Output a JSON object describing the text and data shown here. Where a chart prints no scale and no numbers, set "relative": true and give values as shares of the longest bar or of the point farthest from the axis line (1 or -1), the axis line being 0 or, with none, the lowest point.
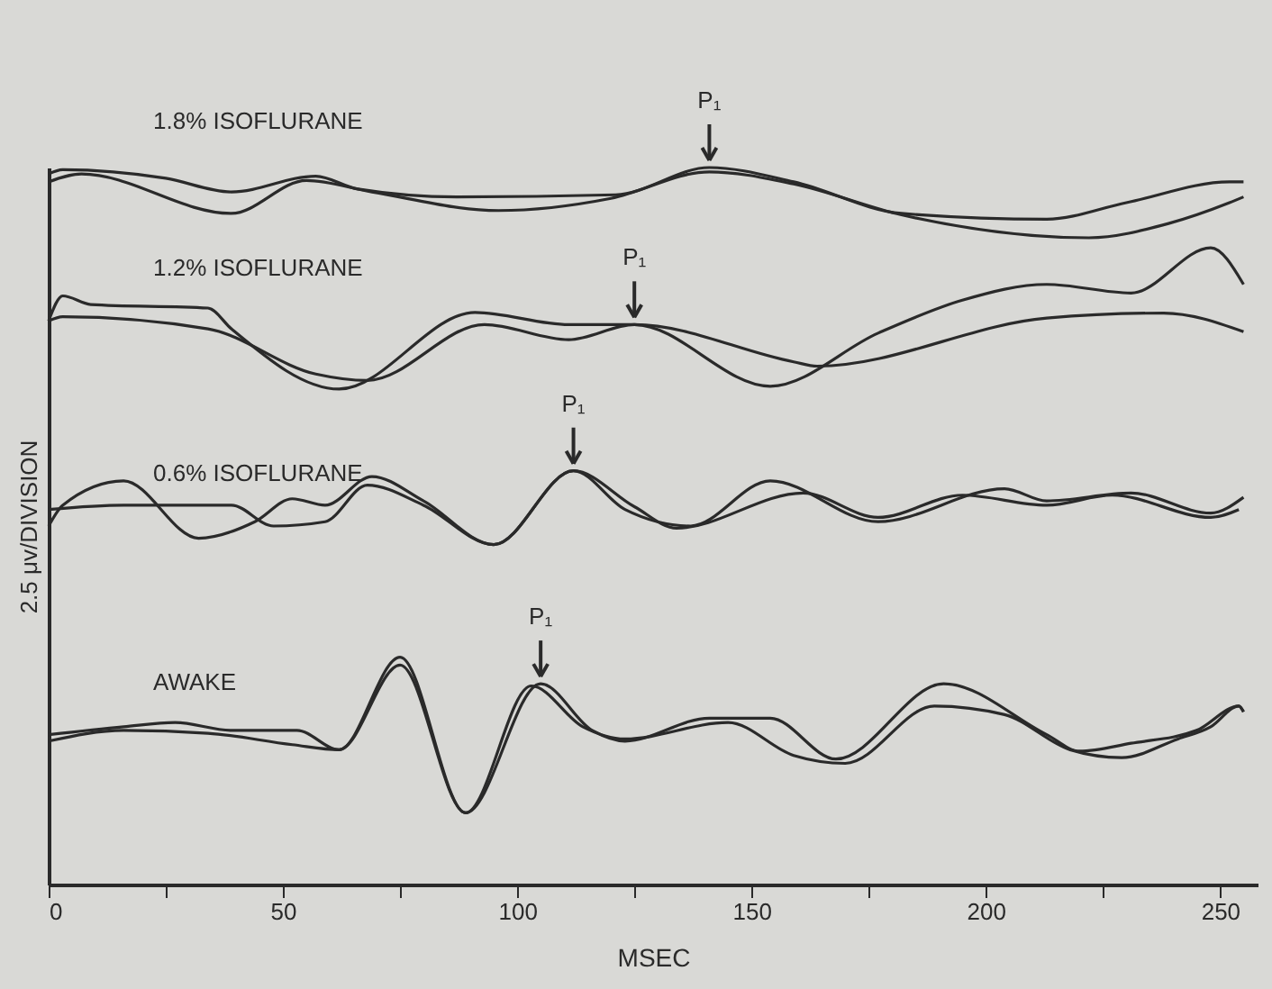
{
  "chart_data": {
    "type": "line",
    "relative": true,
    "xlabel": "MSEC",
    "ylabel": "2.5 μv/DIVISION",
    "xlim": [
      0,
      258
    ],
    "xticks": [
      0,
      {
        "value": 25,
        "label": null
      },
      50,
      {
        "value": 75,
        "label": null
      },
      100,
      {
        "value": 125,
        "label": null
      },
      150,
      {
        "value": 175,
        "label": null
      },
      200,
      {
        "value": 225,
        "label": null
      },
      250
    ],
    "grid": false,
    "legend": false,
    "marker": "none",
    "line_style": "solid",
    "series": [
      {
        "name": "1.8% ISOFLURANE",
        "color": "#2a2a2a",
        "x": [
          0,
          3,
          25,
          39,
          57,
          66,
          87,
          121,
          141,
          159,
          182,
          213,
          230,
          252,
          255
        ],
        "values": [
          0.991,
          0.997,
          0.985,
          0.966,
          0.988,
          0.97,
          0.959,
          0.962,
          1.0,
          0.98,
          0.936,
          0.928,
          0.951,
          0.98,
          0.98
        ]
      },
      {
        "color": "#2a2a2a",
        "x": [
          0,
          7,
          39,
          55,
          69,
          96,
          120,
          141,
          159,
          182,
          222,
          239,
          252,
          255
        ],
        "values": [
          0.98,
          0.991,
          0.936,
          0.982,
          0.966,
          0.94,
          0.957,
          0.994,
          0.977,
          0.934,
          0.902,
          0.922,
          0.951,
          0.959
        ]
      },
      {
        "name": "1.2% ISOFLURANE",
        "color": "#2a2a2a",
        "x": [
          0,
          3,
          9,
          34,
          39,
          62,
          91,
          111,
          125,
          154,
          177,
          195,
          213,
          231,
          248,
          255
        ],
        "values": [
          0.786,
          0.821,
          0.809,
          0.804,
          0.775,
          0.691,
          0.798,
          0.781,
          0.781,
          0.695,
          0.769,
          0.815,
          0.837,
          0.825,
          0.888,
          0.837
        ]
      },
      {
        "color": "#2a2a2a",
        "x": [
          0,
          3,
          34,
          57,
          68,
          93,
          111,
          125,
          159,
          164,
          213,
          238,
          255
        ],
        "values": [
          0.786,
          0.792,
          0.775,
          0.712,
          0.703,
          0.781,
          0.76,
          0.781,
          0.729,
          0.723,
          0.79,
          0.797,
          0.771
        ]
      },
      {
        "name": "0.6% ISOFLURANE",
        "color": "#2a2a2a",
        "x": [
          0,
          3,
          16,
          32,
          44,
          52,
          59,
          69,
          80,
          95,
          112,
          123,
          137,
          154,
          177,
          204,
          213,
          231,
          248,
          255
        ],
        "values": [
          0.5,
          0.529,
          0.563,
          0.483,
          0.506,
          0.538,
          0.529,
          0.569,
          0.535,
          0.474,
          0.577,
          0.523,
          0.5,
          0.563,
          0.506,
          0.552,
          0.535,
          0.546,
          0.518,
          0.54
        ]
      },
      {
        "color": "#2a2a2a",
        "x": [
          0,
          16,
          39,
          48,
          59,
          68,
          80,
          95,
          112,
          125,
          134,
          161,
          177,
          195,
          213,
          227,
          248,
          254
        ],
        "values": [
          0.523,
          0.529,
          0.529,
          0.5,
          0.506,
          0.557,
          0.529,
          0.474,
          0.577,
          0.527,
          0.497,
          0.546,
          0.512,
          0.543,
          0.529,
          0.543,
          0.512,
          0.523
        ]
      },
      {
        "name": "AWAKE",
        "color": "#2a2a2a",
        "x": [
          0,
          16,
          27,
          39,
          53,
          62,
          75,
          89,
          105,
          116,
          123,
          141,
          154,
          168,
          191,
          213,
          220,
          231,
          245,
          254,
          255
        ],
        "values": [
          0.209,
          0.22,
          0.226,
          0.215,
          0.215,
          0.188,
          0.317,
          0.1,
          0.28,
          0.215,
          0.2,
          0.232,
          0.232,
          0.175,
          0.28,
          0.209,
          0.186,
          0.197,
          0.215,
          0.249,
          0.241
        ]
      },
      {
        "color": "#2a2a2a",
        "x": [
          0,
          16,
          34,
          52,
          62,
          75,
          89,
          103,
          114,
          123,
          145,
          159,
          170,
          189,
          204,
          218,
          229,
          241,
          248,
          254,
          255
        ],
        "values": [
          0.2,
          0.215,
          0.211,
          0.195,
          0.188,
          0.306,
          0.1,
          0.277,
          0.22,
          0.203,
          0.226,
          0.18,
          0.169,
          0.249,
          0.237,
          0.188,
          0.177,
          0.203,
          0.22,
          0.249,
          0.241
        ]
      }
    ],
    "annotations": [
      {
        "text": "P₁",
        "x": 141,
        "y": 1.0
      },
      {
        "text": "P₁",
        "x": 125,
        "y": 0.781
      },
      {
        "text": "P₁",
        "x": 112,
        "y": 0.577
      },
      {
        "text": "P₁",
        "x": 105,
        "y": 0.28
      }
    ]
  }
}
